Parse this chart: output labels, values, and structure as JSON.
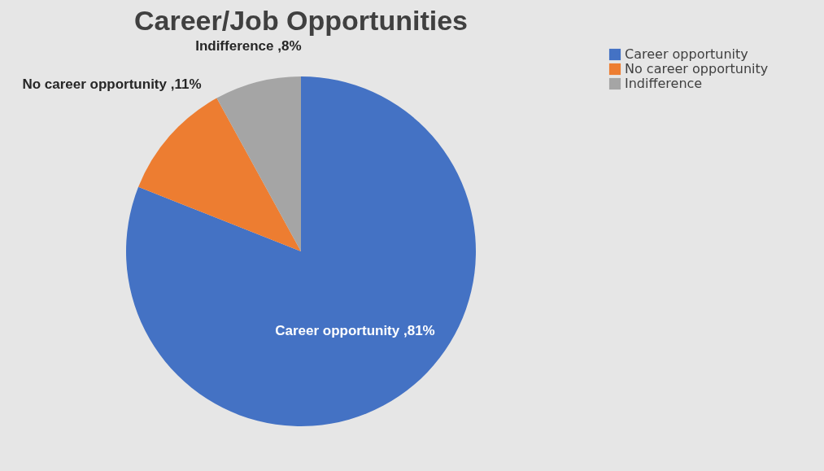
{
  "chart_data": {
    "type": "pie",
    "title": "Career/Job Opportunities",
    "categories": [
      "Career opportunity",
      "No career opportunity",
      "Indifference"
    ],
    "values": [
      81,
      11,
      8
    ],
    "colors": [
      "#4472c4",
      "#ed7d31",
      "#a5a5a5"
    ],
    "value_labels": [
      "Career opportunity ,81%",
      "No career opportunity ,11%",
      "Indifference ,8%"
    ],
    "legend": "right"
  }
}
